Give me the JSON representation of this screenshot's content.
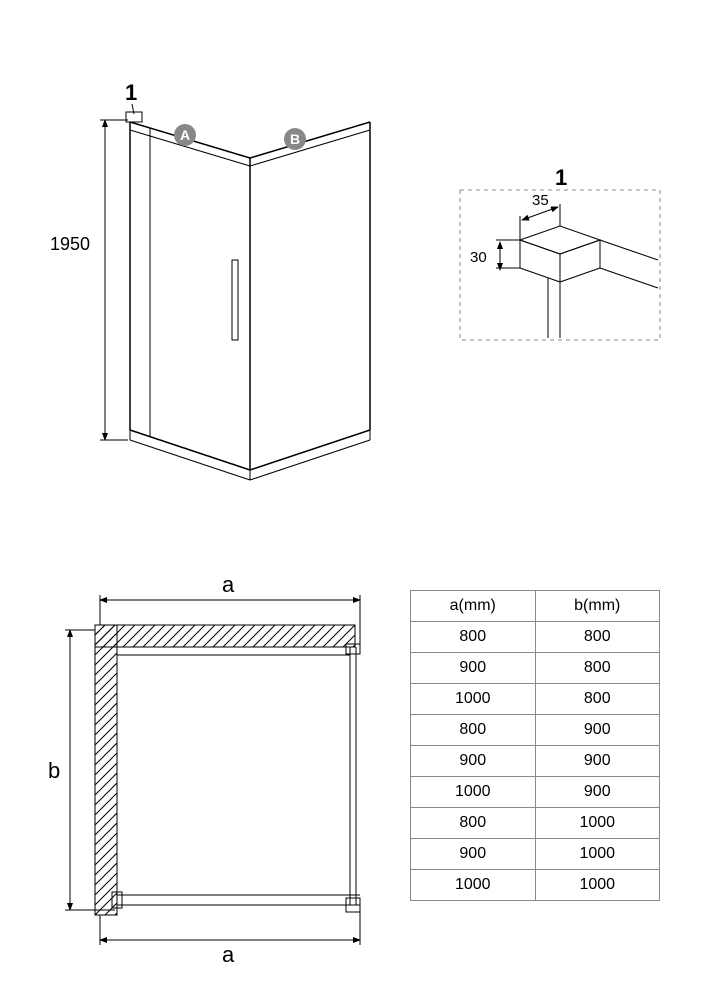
{
  "iso_view": {
    "height_label": "1950",
    "callout_label": "1",
    "badge_A": "A",
    "badge_B": "B"
  },
  "detail_1": {
    "label": "1",
    "dim_w": "35",
    "dim_h": "30"
  },
  "plan_view": {
    "dim_a_label": "a",
    "dim_b_label": "b",
    "dim_a_bottom": "a"
  },
  "table": {
    "col_a": "a(mm)",
    "col_b": "b(mm)",
    "rows": [
      [
        "800",
        "800"
      ],
      [
        "900",
        "800"
      ],
      [
        "1000",
        "800"
      ],
      [
        "800",
        "900"
      ],
      [
        "900",
        "900"
      ],
      [
        "1000",
        "900"
      ],
      [
        "800",
        "1000"
      ],
      [
        "900",
        "1000"
      ],
      [
        "1000",
        "1000"
      ]
    ]
  },
  "style": {
    "badge_fill": "#888888",
    "line_color": "#000000",
    "dash_color": "#888888",
    "background": "#ffffff",
    "font_family": "Arial"
  }
}
